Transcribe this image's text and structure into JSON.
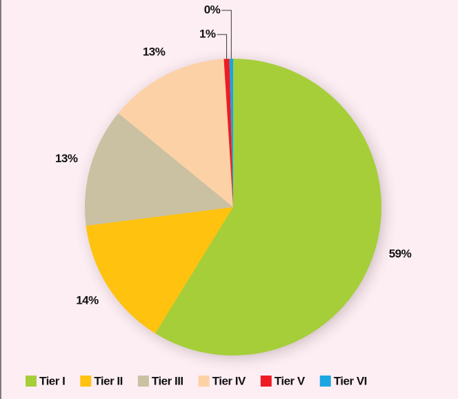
{
  "chart_data": {
    "type": "pie",
    "categories": [
      "Tier I",
      "Tier II",
      "Tier III",
      "Tier IV",
      "Tier V",
      "Tier VI"
    ],
    "values": [
      58.8,
      14.2,
      12.9,
      13.1,
      0.6,
      0.4
    ],
    "value_labels": [
      "59%",
      "14%",
      "13%",
      "13%",
      "1%",
      "0%"
    ],
    "colors": [
      "#a6ce39",
      "#ffc20e",
      "#c9c1a1",
      "#fdd1a6",
      "#ed1c24",
      "#1ba5e1"
    ],
    "legend": "bottom"
  }
}
